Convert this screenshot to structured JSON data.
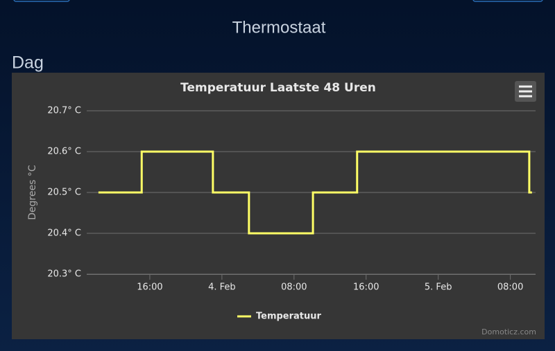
{
  "header": {
    "title": "Thermostaat",
    "section": "Dag"
  },
  "chart_data": {
    "type": "line",
    "step": true,
    "title": "Temperatuur Laatste 48 Uren",
    "y_axis_label": "Degrees °C",
    "credits": "Domoticz.com",
    "x": [
      10.3,
      15.1,
      23.0,
      27.0,
      34.1,
      39.0,
      58.1,
      58.4
    ],
    "series": [
      {
        "name": "Temperatuur",
        "color": "#ffff66",
        "values": [
          20.5,
          20.6,
          20.5,
          20.4,
          20.5,
          20.6,
          20.5,
          20.5
        ]
      }
    ],
    "xlim": [
      9,
      58.8
    ],
    "xticks": [
      {
        "value": 16,
        "label": "16:00"
      },
      {
        "value": 24,
        "label": "4. Feb"
      },
      {
        "value": 32,
        "label": "08:00"
      },
      {
        "value": 40,
        "label": "16:00"
      },
      {
        "value": 48,
        "label": "5. Feb"
      },
      {
        "value": 56,
        "label": "08:00"
      }
    ],
    "ylim": [
      20.3,
      20.7
    ],
    "yticks": [
      {
        "value": 20.3,
        "label": "20.3° C"
      },
      {
        "value": 20.4,
        "label": "20.4° C"
      },
      {
        "value": 20.5,
        "label": "20.5° C"
      },
      {
        "value": 20.6,
        "label": "20.6° C"
      },
      {
        "value": 20.7,
        "label": "20.7° C"
      }
    ],
    "grid": true,
    "legend": "bottom"
  }
}
